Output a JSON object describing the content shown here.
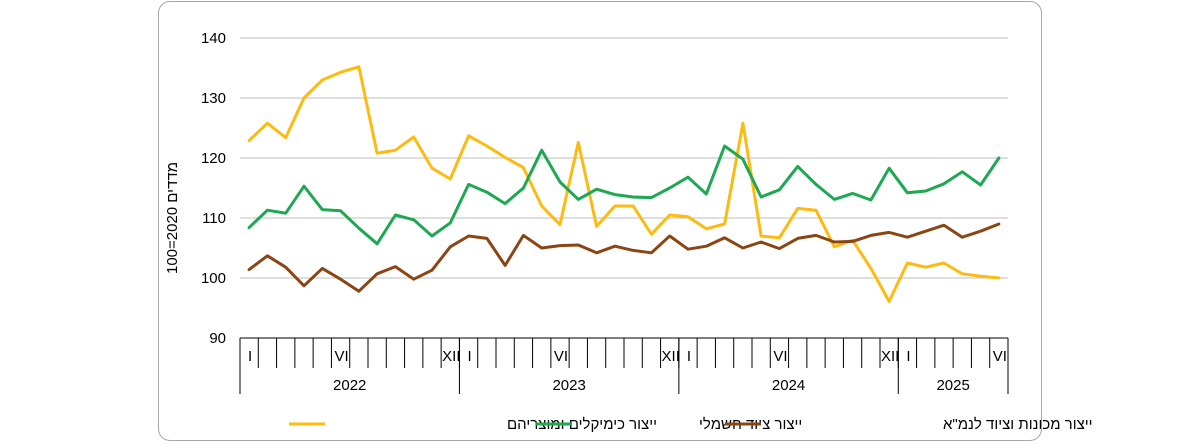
{
  "chart_data": {
    "type": "line",
    "title": "",
    "xlabel": "",
    "ylabel": "מדדים 2020=100",
    "ylim": [
      90,
      140
    ],
    "yticks": [
      90,
      100,
      110,
      120,
      130,
      140
    ],
    "grid": true,
    "legend_position": "bottom",
    "x": [
      "2022-01",
      "2022-02",
      "2022-03",
      "2022-04",
      "2022-05",
      "2022-06",
      "2022-07",
      "2022-08",
      "2022-09",
      "2022-10",
      "2022-11",
      "2022-12",
      "2023-01",
      "2023-02",
      "2023-03",
      "2023-04",
      "2023-05",
      "2023-06",
      "2023-07",
      "2023-08",
      "2023-09",
      "2023-10",
      "2023-11",
      "2023-12",
      "2024-01",
      "2024-02",
      "2024-03",
      "2024-04",
      "2024-05",
      "2024-06",
      "2024-07",
      "2024-08",
      "2024-09",
      "2024-10",
      "2024-11",
      "2024-12",
      "2025-01",
      "2025-02",
      "2025-03",
      "2025-04",
      "2025-05",
      "2025-06"
    ],
    "x_tick_labels": [
      "I",
      "",
      "",
      "",
      "",
      "VI",
      "",
      "",
      "",
      "",
      "",
      "XII",
      "I",
      "",
      "",
      "",
      "",
      "VI",
      "",
      "",
      "",
      "",
      "",
      "XII",
      "I",
      "",
      "",
      "",
      "",
      "VI",
      "",
      "",
      "",
      "",
      "",
      "XII",
      "I",
      "",
      "",
      "",
      "",
      "VI"
    ],
    "years": [
      {
        "label": "2022",
        "start": 0,
        "count": 12
      },
      {
        "label": "2023",
        "start": 12,
        "count": 12
      },
      {
        "label": "2024",
        "start": 24,
        "count": 12
      },
      {
        "label": "2025",
        "start": 36,
        "count": 6
      }
    ],
    "series": [
      {
        "name": "ייצור כימיקלים ומוצריהם",
        "color": "#FDBB11",
        "values": [
          122.9,
          125.8,
          123.4,
          130.0,
          133.0,
          134.3,
          135.2,
          120.8,
          121.3,
          123.5,
          118.3,
          116.5,
          123.7,
          122.0,
          120.1,
          118.4,
          112.0,
          108.9,
          122.6,
          108.6,
          112.0,
          112.0,
          107.3,
          110.5,
          110.2,
          108.2,
          109.0,
          125.8,
          107.0,
          106.7,
          111.6,
          111.3,
          105.2,
          106.3,
          101.6,
          96.1,
          102.5,
          101.8,
          102.5,
          100.7,
          100.3,
          100.0
        ]
      },
      {
        "name": "ייצור ציוד חשמלי",
        "color": "#1DA851",
        "values": [
          108.4,
          111.3,
          110.8,
          115.3,
          111.4,
          111.2,
          108.3,
          105.7,
          110.5,
          109.7,
          107.0,
          109.2,
          115.6,
          114.3,
          112.4,
          115.0,
          121.3,
          116.0,
          113.1,
          114.8,
          113.9,
          113.5,
          113.4,
          115.0,
          116.8,
          114.0,
          122.0,
          119.8,
          113.5,
          114.7,
          118.6,
          115.6,
          113.1,
          114.1,
          113.0,
          118.3,
          114.2,
          114.5,
          115.7,
          117.7,
          115.5,
          120.0
        ]
      },
      {
        "name": "ייצור מכונות וציוד לנמ\"א",
        "color": "#8B4513",
        "values": [
          101.4,
          103.7,
          101.8,
          98.7,
          101.6,
          99.8,
          97.8,
          100.7,
          101.9,
          99.8,
          101.3,
          105.2,
          107.0,
          106.6,
          102.1,
          107.1,
          105.0,
          105.4,
          105.5,
          104.2,
          105.3,
          104.6,
          104.2,
          107.0,
          104.8,
          105.3,
          106.7,
          105.0,
          106.0,
          104.9,
          106.6,
          107.1,
          106.0,
          106.1,
          107.1,
          107.6,
          106.8,
          107.8,
          108.8,
          106.8,
          107.8,
          109.0
        ]
      }
    ]
  }
}
